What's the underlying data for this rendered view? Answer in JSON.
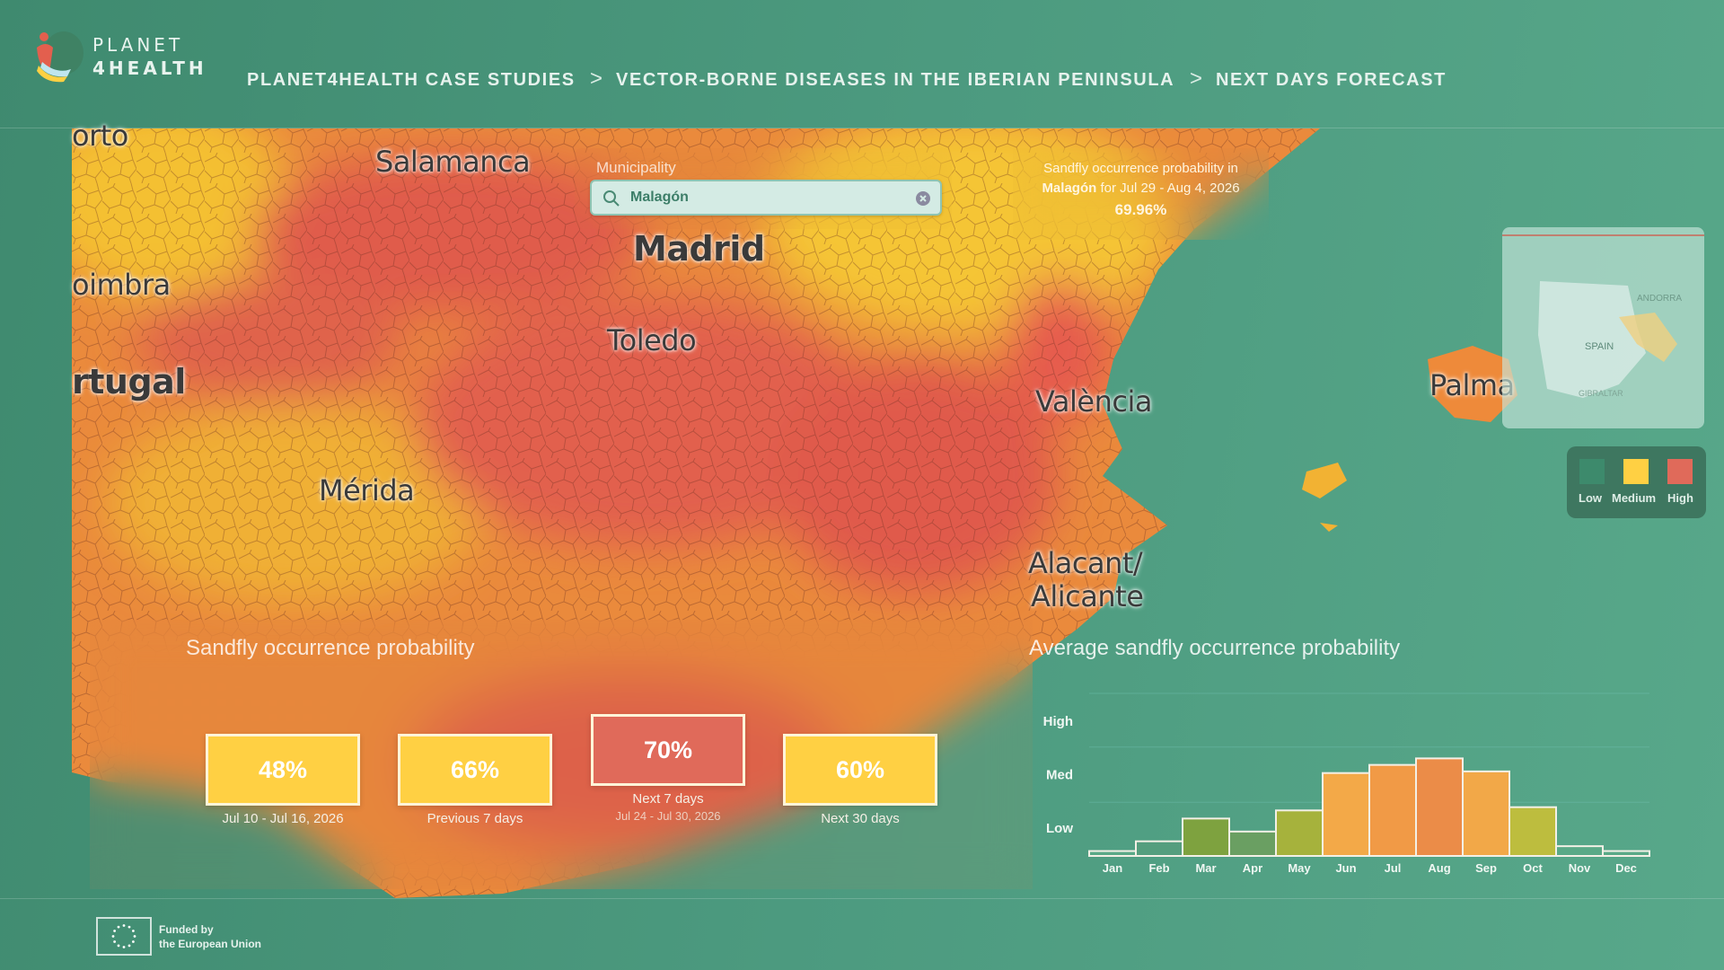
{
  "header": {
    "logo_line1": "PLANET",
    "logo_line2": "4HEALTH",
    "breadcrumb": [
      "PLANET4HEALTH CASE STUDIES",
      "VECTOR-BORNE DISEASES IN THE IBERIAN PENINSULA",
      "NEXT DAYS FORECAST"
    ],
    "separator": ">"
  },
  "map": {
    "labels": {
      "porto": "orto",
      "salamanca": "Salamanca",
      "madrid": "Madrid",
      "coimbra": "oimbra",
      "toledo": "Toledo",
      "portugal": "rtugal",
      "merida": "Mérida",
      "valencia": "València",
      "alicante1": "Alacant/",
      "alicante2": "Alicante",
      "palma": "Palma"
    },
    "inset": {
      "spain": "SPAIN",
      "andorra": "ANDORRA",
      "gibraltar": "GIBRALTAR"
    }
  },
  "search": {
    "label": "Municipality",
    "value": "Malagón",
    "icon": "search-icon",
    "clear_icon": "clear-icon"
  },
  "tooltip": {
    "line1": "Sandfly occurrence probability in",
    "place": "Malagón",
    "line2_rest": " for Jul 29 - Aug 4, 2026",
    "value": "69.96%"
  },
  "legend": {
    "items": [
      {
        "label": "Low",
        "color": "#3d8a6c"
      },
      {
        "label": "Medium",
        "color": "#ffd043"
      },
      {
        "label": "High",
        "color": "#e06a5a"
      }
    ]
  },
  "summary": {
    "title": "Sandfly occurrence probability",
    "cards": [
      {
        "value": "48%",
        "label": "Jul 10 - Jul 16, 2026",
        "sublabel": "",
        "color": "#ffd043"
      },
      {
        "value": "66%",
        "label": "Previous 7 days",
        "sublabel": "",
        "color": "#ffd043"
      },
      {
        "value": "70%",
        "label": "Next 7 days",
        "sublabel": "Jul 24 - Jul 30, 2026",
        "color": "#e06a5a"
      },
      {
        "value": "60%",
        "label": "Next 30 days",
        "sublabel": "",
        "color": "#ffd043"
      }
    ]
  },
  "chart_data": {
    "type": "bar",
    "title": "Average sandfly occurrence probability",
    "categories": [
      "Jan",
      "Feb",
      "Mar",
      "Apr",
      "May",
      "Jun",
      "Jul",
      "Aug",
      "Sep",
      "Oct",
      "Nov",
      "Dec"
    ],
    "values": [
      0.03,
      0.09,
      0.23,
      0.15,
      0.28,
      0.51,
      0.56,
      0.6,
      0.52,
      0.3,
      0.06,
      0.03
    ],
    "colors": [
      "#5aa987",
      "#559e7e",
      "#7ea23f",
      "#6a9f62",
      "#a6b23c",
      "#f3a948",
      "#f19a46",
      "#eb8c48",
      "#f2a848",
      "#bdbd3e",
      "#5aa987",
      "#5aa987"
    ],
    "yticks": [
      {
        "label": "Low",
        "value": 0.17
      },
      {
        "label": "Med",
        "value": 0.5
      },
      {
        "label": "High",
        "value": 0.83
      }
    ],
    "ylim": [
      0,
      1
    ],
    "grid": true
  },
  "footer": {
    "line1": "Funded by",
    "line2": "the European Union"
  }
}
